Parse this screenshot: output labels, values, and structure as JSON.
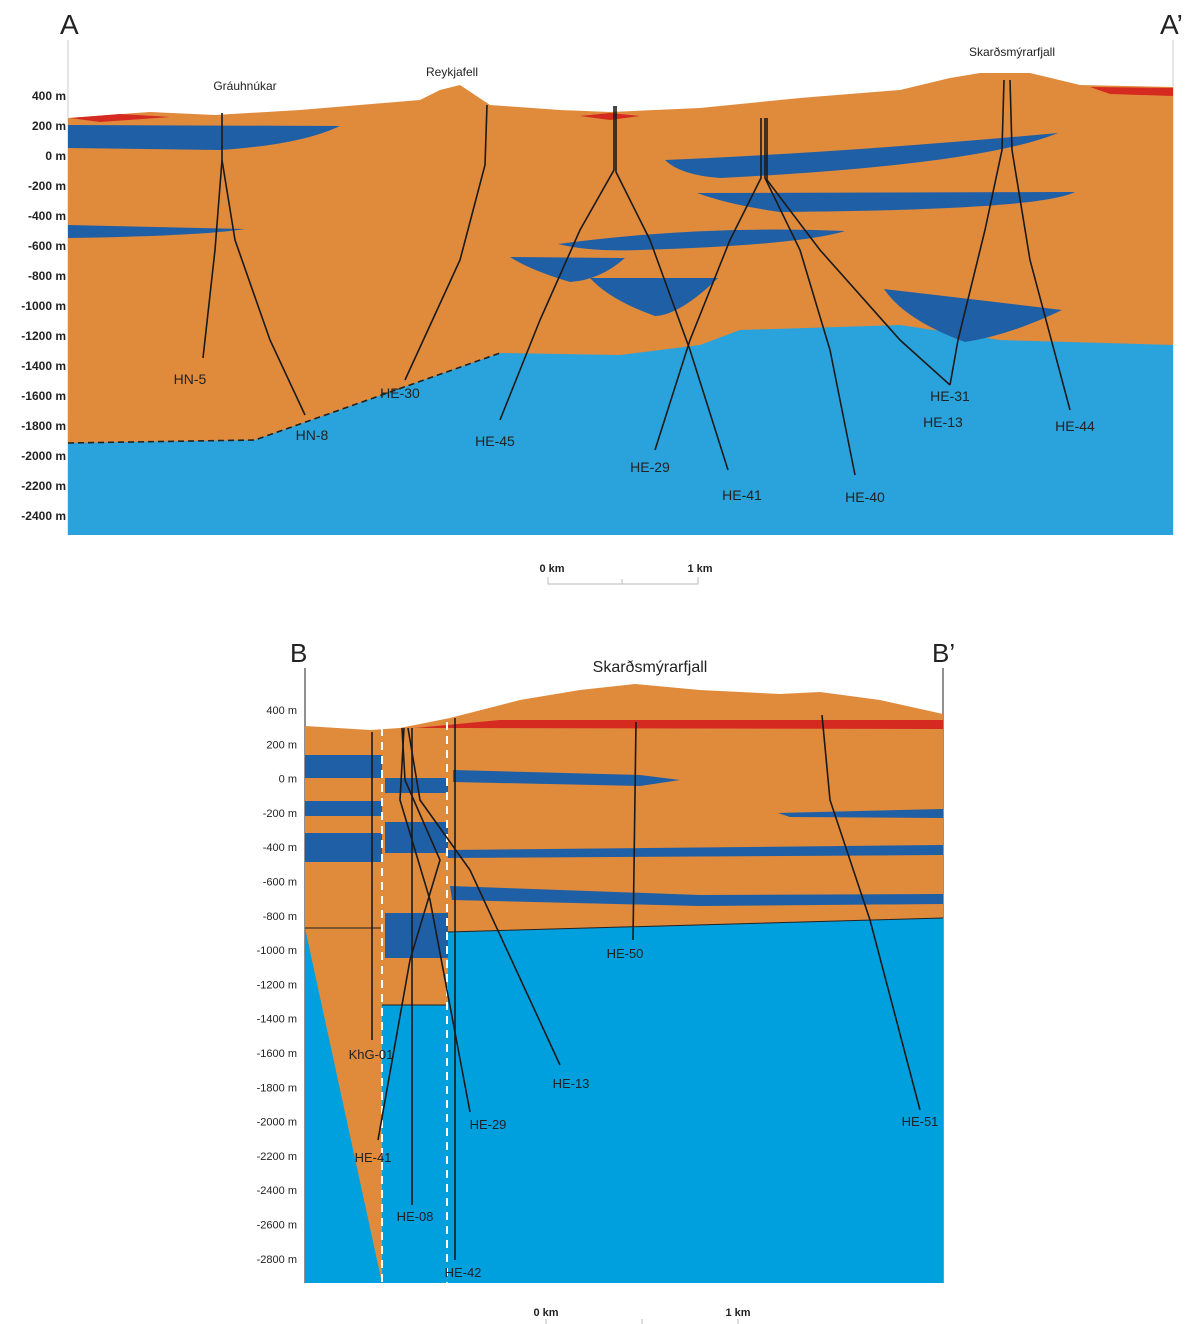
{
  "section_a": {
    "start_label": "A",
    "end_label": "A’",
    "places": [
      "Gráuhnúkar",
      "Reykjafell",
      "Skarðsmýrarfjall"
    ],
    "depth_labels": [
      "400 m",
      "200 m",
      "0 m",
      "-200 m",
      "-400 m",
      "-600 m",
      "-800 m",
      "-1000 m",
      "-1200 m",
      "-1400 m",
      "-1600 m",
      "-1800 m",
      "-2000 m",
      "-2200 m",
      "-2400 m"
    ],
    "wells": [
      "HN-5",
      "HN-8",
      "HE-30",
      "HE-45",
      "HE-29",
      "HE-41",
      "HE-40",
      "HE-31",
      "HE-13",
      "HE-44"
    ],
    "scale": [
      "0 km",
      "1 km"
    ]
  },
  "section_b": {
    "start_label": "B",
    "end_label": "B’",
    "places": [
      "Skarðsmýrarfjall"
    ],
    "depth_labels": [
      "400 m",
      "200 m",
      "0 m",
      "-200 m",
      "-400 m",
      "-600 m",
      "-800 m",
      "-1000 m",
      "-1200 m",
      "-1400 m",
      "-1600 m",
      "-1800 m",
      "-2000 m",
      "-2200 m",
      "-2400 m",
      "-2600 m",
      "-2800 m"
    ],
    "wells": [
      "KhG-01",
      "HE-41",
      "HE-08",
      "HE-42",
      "HE-29",
      "HE-13",
      "HE-50",
      "HE-51"
    ],
    "scale": [
      "0 km",
      "1 km"
    ]
  }
}
